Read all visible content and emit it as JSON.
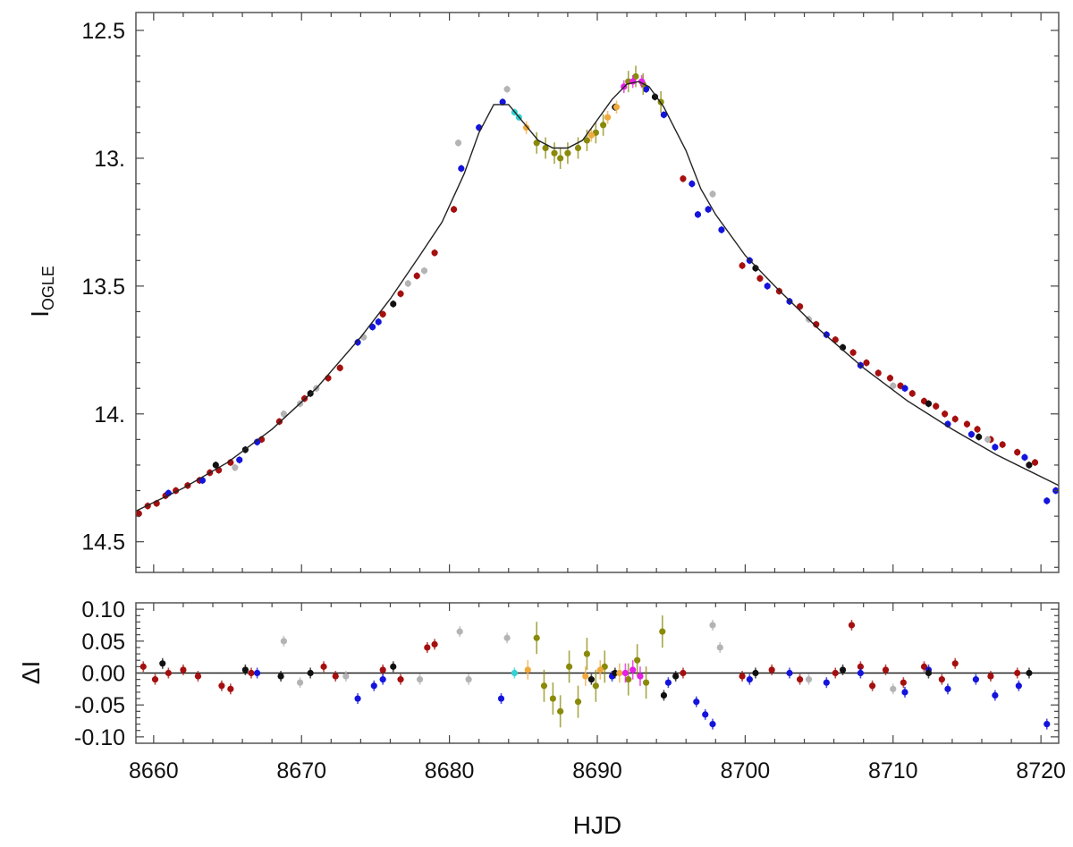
{
  "chart_data": [
    {
      "type": "scatter",
      "panel": "light-curve",
      "title": "",
      "xlabel": "HJD",
      "ylabel": "I",
      "ylabel_subscript": "OGLE",
      "xlim": [
        8658.8,
        8721.2
      ],
      "ylim": [
        14.62,
        12.43
      ],
      "y_inverted": true,
      "xticks": [
        8660,
        8670,
        8680,
        8690,
        8700,
        8710,
        8720
      ],
      "yticks": [
        12.5,
        13.0,
        13.5,
        14.0,
        14.5
      ],
      "ytick_labels": [
        "12.5",
        "13.",
        "13.5",
        "14.",
        "14.5"
      ],
      "grid": false,
      "legend": "none",
      "model_curve": {
        "color": "#222222",
        "x": [
          8658.8,
          8662,
          8665,
          8668,
          8671,
          8674,
          8676,
          8678,
          8679.5,
          8681,
          8682,
          8683,
          8684,
          8685,
          8686,
          8687,
          8688,
          8689,
          8690,
          8691,
          8692,
          8692.8,
          8693.5,
          8694.5,
          8696,
          8697,
          8698,
          8700,
          8702,
          8705,
          8708,
          8711,
          8714,
          8717,
          8721.2
        ],
        "y": [
          14.38,
          14.29,
          14.19,
          14.06,
          13.9,
          13.7,
          13.55,
          13.38,
          13.25,
          13.06,
          12.9,
          12.79,
          12.79,
          12.86,
          12.93,
          12.96,
          12.96,
          12.93,
          12.85,
          12.77,
          12.71,
          12.7,
          12.72,
          12.8,
          12.97,
          13.12,
          13.22,
          13.38,
          13.5,
          13.67,
          13.82,
          13.95,
          14.06,
          14.16,
          14.28
        ]
      },
      "series_colors": {
        "red": "#a50f0f",
        "blue": "#1414dc",
        "gray": "#b4b4b4",
        "black": "#111111",
        "olive": "#8a8a0a",
        "orange": "#f0aa3c",
        "magenta": "#e61ee6",
        "cyan": "#32d2d2"
      },
      "series": [
        {
          "color": "#a50f0f",
          "x": [
            8659.0,
            8659.6,
            8660.2,
            8660.8,
            8661.5,
            8662.3,
            8663.1,
            8663.8,
            8664.4,
            8665.2,
            8667.3,
            8668.5,
            8670.2,
            8671.8,
            8672.6,
            8675.5,
            8676.7,
            8677.8,
            8679.0,
            8680.3,
            8695.8,
            8699.8,
            8701.0,
            8702.3,
            8703.7,
            8704.8,
            8706.1,
            8707.3,
            8708.2,
            8709.0,
            8709.8,
            8710.5,
            8711.3,
            8712.1,
            8712.9,
            8713.5,
            8714.2,
            8715.0,
            8715.7,
            8716.6,
            8717.4,
            8718.4,
            8719.6
          ],
          "y": [
            14.39,
            14.36,
            14.35,
            14.32,
            14.3,
            14.28,
            14.26,
            14.23,
            14.22,
            14.19,
            14.1,
            14.03,
            13.94,
            13.86,
            13.82,
            13.61,
            13.53,
            13.46,
            13.37,
            13.2,
            13.08,
            13.42,
            13.47,
            13.52,
            13.58,
            13.65,
            13.71,
            13.76,
            13.8,
            13.84,
            13.86,
            13.89,
            13.92,
            13.95,
            13.97,
            14.0,
            14.02,
            14.04,
            14.06,
            14.1,
            14.12,
            14.15,
            14.19
          ]
        },
        {
          "color": "#1414dc",
          "x": [
            8661.0,
            8663.3,
            8665.8,
            8667.0,
            8673.8,
            8674.8,
            8675.2,
            8680.8,
            8682.0,
            8683.6,
            8693.3,
            8694.5,
            8696.4,
            8696.8,
            8697.5,
            8698.4,
            8700.3,
            8701.5,
            8703.0,
            8705.5,
            8707.8,
            8710.8,
            8713.7,
            8715.3,
            8716.9,
            8718.9,
            8720.4,
            8721.0
          ],
          "y": [
            14.31,
            14.26,
            14.18,
            14.11,
            13.72,
            13.66,
            13.64,
            13.04,
            12.88,
            12.78,
            12.73,
            12.83,
            13.1,
            13.22,
            13.2,
            13.28,
            13.4,
            13.5,
            13.56,
            13.69,
            13.81,
            13.9,
            14.04,
            14.08,
            14.13,
            14.17,
            14.34,
            14.3
          ]
        },
        {
          "color": "#b4b4b4",
          "x": [
            8665.5,
            8668.8,
            8669.9,
            8671.0,
            8674.2,
            8677.2,
            8678.3,
            8680.6,
            8683.9,
            8697.8,
            8704.3,
            8710.0,
            8716.4
          ],
          "y": [
            14.21,
            14.0,
            13.96,
            13.9,
            13.7,
            13.49,
            13.44,
            12.94,
            12.73,
            13.14,
            13.63,
            13.89,
            14.1
          ]
        },
        {
          "color": "#111111",
          "x": [
            8664.2,
            8666.2,
            8670.6,
            8676.2,
            8691.2,
            8693.9,
            8700.7,
            8706.6,
            8712.4,
            8715.8,
            8719.2
          ],
          "y": [
            14.2,
            14.14,
            13.92,
            13.57,
            12.8,
            12.76,
            13.43,
            13.74,
            13.96,
            14.09,
            14.2
          ]
        },
        {
          "color": "#8a8a0a",
          "x": [
            8685.9,
            8686.5,
            8687.1,
            8687.5,
            8688.0,
            8688.7,
            8689.3,
            8689.9,
            8690.4,
            8692.1,
            8692.6,
            8693.1,
            8694.3
          ],
          "y": [
            12.94,
            12.96,
            12.98,
            13.0,
            12.98,
            12.96,
            12.93,
            12.9,
            12.87,
            12.7,
            12.68,
            12.71,
            12.78
          ]
        },
        {
          "color": "#f0aa3c",
          "x": [
            8685.2,
            8689.6,
            8690.7,
            8691.3
          ],
          "y": [
            12.88,
            12.91,
            12.84,
            12.8
          ]
        },
        {
          "color": "#e61ee6",
          "x": [
            8691.8,
            8692.4,
            8693.0
          ],
          "y": [
            12.72,
            12.7,
            12.7
          ]
        },
        {
          "color": "#32d2d2",
          "x": [
            8684.4,
            8684.7
          ],
          "y": [
            12.82,
            12.84
          ]
        }
      ]
    },
    {
      "type": "scatter",
      "panel": "residuals",
      "title": "",
      "xlabel": "HJD",
      "ylabel": "ΔI",
      "xlim": [
        8658.8,
        8721.2
      ],
      "ylim": [
        -0.11,
        0.11
      ],
      "xticks": [
        8660,
        8670,
        8680,
        8690,
        8700,
        8710,
        8720
      ],
      "yticks": [
        0.1,
        0.05,
        0.0,
        -0.05,
        -0.1
      ],
      "ytick_labels": [
        "0.10",
        "0.05",
        "0.00",
        "-0.05",
        "-0.10"
      ],
      "zero_line": true,
      "grid": false,
      "legend": "none",
      "series": [
        {
          "color": "#a50f0f",
          "x": [
            8659.3,
            8660.1,
            8661.0,
            8662.0,
            8663.0,
            8664.6,
            8665.2,
            8666.6,
            8671.5,
            8672.3,
            8675.5,
            8676.7,
            8678.5,
            8679.0,
            8695.8,
            8699.8,
            8701.8,
            8703.7,
            8706.1,
            8707.2,
            8707.8,
            8708.6,
            8709.5,
            8710.7,
            8712.1,
            8713.3,
            8714.2,
            8716.6,
            8718.4
          ],
          "y": [
            0.01,
            -0.01,
            0.0,
            0.005,
            -0.005,
            -0.02,
            -0.025,
            0.0,
            0.01,
            -0.005,
            0.005,
            -0.01,
            0.04,
            0.045,
            0.0,
            -0.005,
            0.005,
            -0.01,
            0.0,
            0.075,
            0.01,
            -0.02,
            0.005,
            -0.015,
            0.01,
            -0.01,
            0.015,
            -0.005,
            0.0
          ]
        },
        {
          "color": "#1414dc",
          "x": [
            8667.0,
            8673.8,
            8674.9,
            8675.5,
            8683.5,
            8691.0,
            8694.8,
            8696.7,
            8697.3,
            8697.8,
            8700.3,
            8703.0,
            8705.5,
            8707.8,
            8710.8,
            8712.4,
            8713.7,
            8715.6,
            8716.9,
            8718.5,
            8720.4
          ],
          "y": [
            0.0,
            -0.04,
            -0.02,
            -0.01,
            -0.04,
            -0.005,
            -0.015,
            -0.045,
            -0.065,
            -0.08,
            -0.01,
            0.0,
            -0.015,
            0.0,
            -0.03,
            0.005,
            -0.025,
            -0.01,
            -0.035,
            -0.02,
            -0.08
          ]
        },
        {
          "color": "#b4b4b4",
          "x": [
            8668.8,
            8669.9,
            8673.0,
            8678.0,
            8680.7,
            8681.3,
            8683.9,
            8697.8,
            8698.3,
            8704.3,
            8710.0
          ],
          "y": [
            0.05,
            -0.015,
            -0.005,
            -0.01,
            0.065,
            -0.01,
            0.055,
            0.075,
            0.04,
            -0.01,
            -0.025
          ]
        },
        {
          "color": "#111111",
          "x": [
            8660.6,
            8666.2,
            8668.6,
            8670.6,
            8676.2,
            8689.6,
            8691.2,
            8694.5,
            8695.3,
            8700.7,
            8706.6,
            8712.4,
            8719.2
          ],
          "y": [
            0.015,
            0.005,
            -0.005,
            0.0,
            0.01,
            -0.01,
            0.0,
            -0.035,
            -0.005,
            0.0,
            0.005,
            0.0,
            0.0
          ]
        },
        {
          "color": "#8a8a0a",
          "x": [
            8685.9,
            8686.4,
            8687.0,
            8687.5,
            8688.1,
            8688.7,
            8689.3,
            8689.9,
            8690.5,
            8692.1,
            8692.7,
            8693.3,
            8694.4
          ],
          "y": [
            0.055,
            -0.02,
            -0.04,
            -0.06,
            0.01,
            -0.045,
            0.03,
            -0.02,
            0.01,
            -0.01,
            0.02,
            -0.015,
            0.065
          ]
        },
        {
          "color": "#f0aa3c",
          "x": [
            8685.3,
            8689.2,
            8690.2,
            8691.5
          ],
          "y": [
            0.005,
            -0.005,
            0.005,
            0.0
          ]
        },
        {
          "color": "#e61ee6",
          "x": [
            8691.9,
            8692.4,
            8692.9
          ],
          "y": [
            0.0,
            0.005,
            -0.005
          ]
        },
        {
          "color": "#32d2d2",
          "x": [
            8684.4
          ],
          "y": [
            0.0
          ]
        }
      ]
    }
  ]
}
